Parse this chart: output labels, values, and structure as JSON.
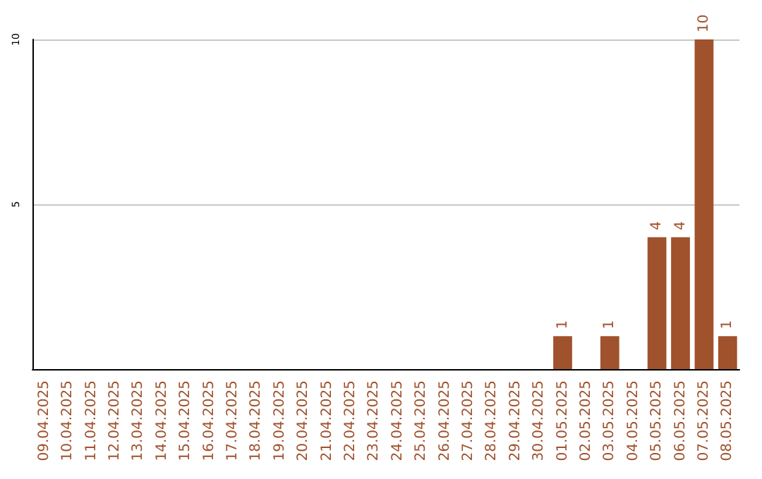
{
  "chart_data": {
    "type": "bar",
    "categories": [
      "09.04.2025",
      "10.04.2025",
      "11.04.2025",
      "12.04.2025",
      "13.04.2025",
      "14.04.2025",
      "15.04.2025",
      "16.04.2025",
      "17.04.2025",
      "18.04.2025",
      "19.04.2025",
      "20.04.2025",
      "21.04.2025",
      "22.04.2025",
      "23.04.2025",
      "24.04.2025",
      "25.04.2025",
      "26.04.2025",
      "27.04.2025",
      "28.04.2025",
      "29.04.2025",
      "30.04.2025",
      "01.05.2025",
      "02.05.2025",
      "03.05.2025",
      "04.05.2025",
      "05.05.2025",
      "06.05.2025",
      "07.05.2025",
      "08.05.2025"
    ],
    "values": [
      0,
      0,
      0,
      0,
      0,
      0,
      0,
      0,
      0,
      0,
      0,
      0,
      0,
      0,
      0,
      0,
      0,
      0,
      0,
      0,
      0,
      0,
      1,
      0,
      1,
      0,
      4,
      4,
      10,
      1
    ],
    "value_labels": [
      null,
      null,
      null,
      null,
      null,
      null,
      null,
      null,
      null,
      null,
      null,
      null,
      null,
      null,
      null,
      null,
      null,
      null,
      null,
      null,
      null,
      null,
      "1",
      null,
      "1",
      null,
      "4",
      "4",
      "10",
      "1"
    ],
    "color": "#a0522d",
    "ylim": [
      0,
      10
    ],
    "yticks": [
      5,
      10
    ],
    "grid": "y"
  }
}
